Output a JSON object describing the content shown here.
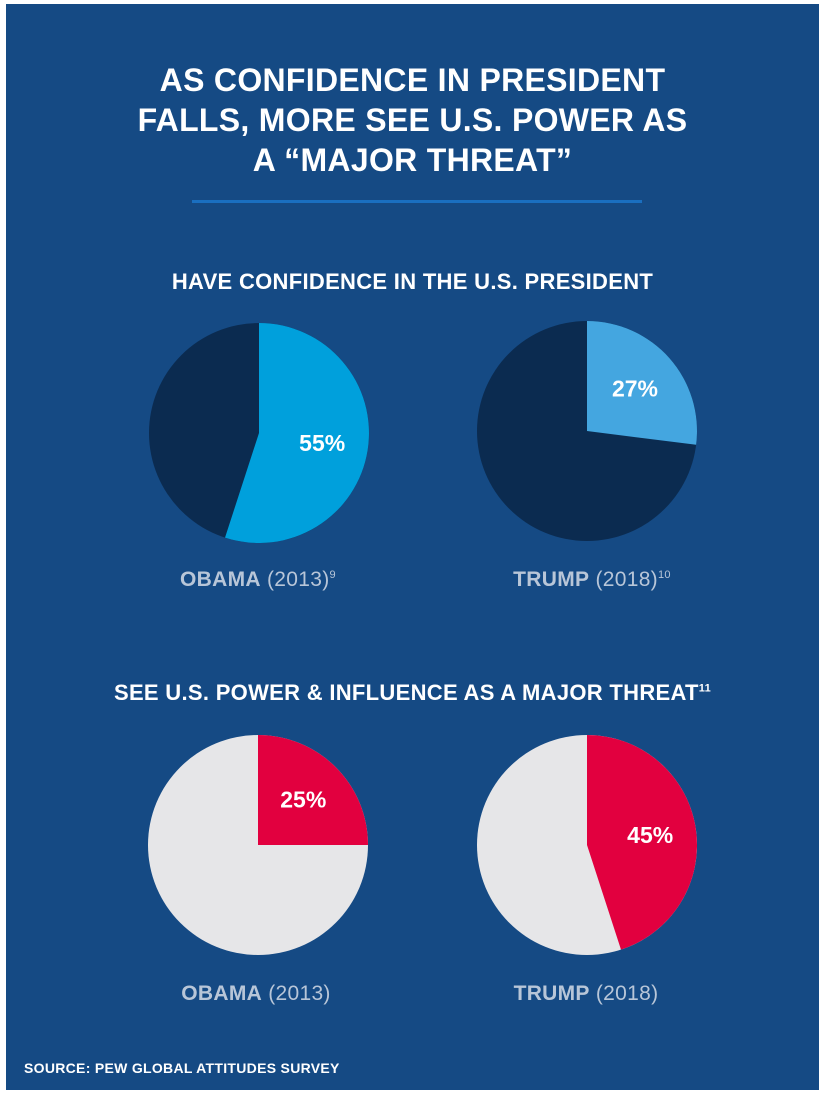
{
  "title": {
    "line1": "AS CONFIDENCE IN PRESIDENT",
    "line2": "FALLS, MORE SEE U.S. POWER AS",
    "line3": "A “MAJOR THREAT”"
  },
  "source": "SOURCE: PEW GLOBAL ATTITUDES SURVEY",
  "colors": {
    "background": "#154a84",
    "divider": "#1a6fc0",
    "dark_slice": "#0b2b50",
    "obama_confidence": "#00a0dc",
    "trump_confidence": "#44a6e0",
    "threat": "#e2003f",
    "light_slice": "#e6e6e8"
  },
  "chart_data": [
    {
      "type": "pie",
      "title": "HAVE CONFIDENCE IN THE U.S. PRESIDENT",
      "title_footnote": "",
      "pies": [
        {
          "name": "OBAMA",
          "year": "(2013)",
          "footnote": "9",
          "value": 55,
          "label": "55%"
        },
        {
          "name": "TRUMP",
          "year": "(2018)",
          "footnote": "10",
          "value": 27,
          "label": "27%"
        }
      ]
    },
    {
      "type": "pie",
      "title": "SEE U.S. POWER & INFLUENCE AS A MAJOR THREAT",
      "title_footnote": "11",
      "pies": [
        {
          "name": "OBAMA",
          "year": "(2013)",
          "footnote": "",
          "value": 25,
          "label": "25%"
        },
        {
          "name": "TRUMP",
          "year": "(2018)",
          "footnote": "",
          "value": 45,
          "label": "45%"
        }
      ]
    }
  ]
}
